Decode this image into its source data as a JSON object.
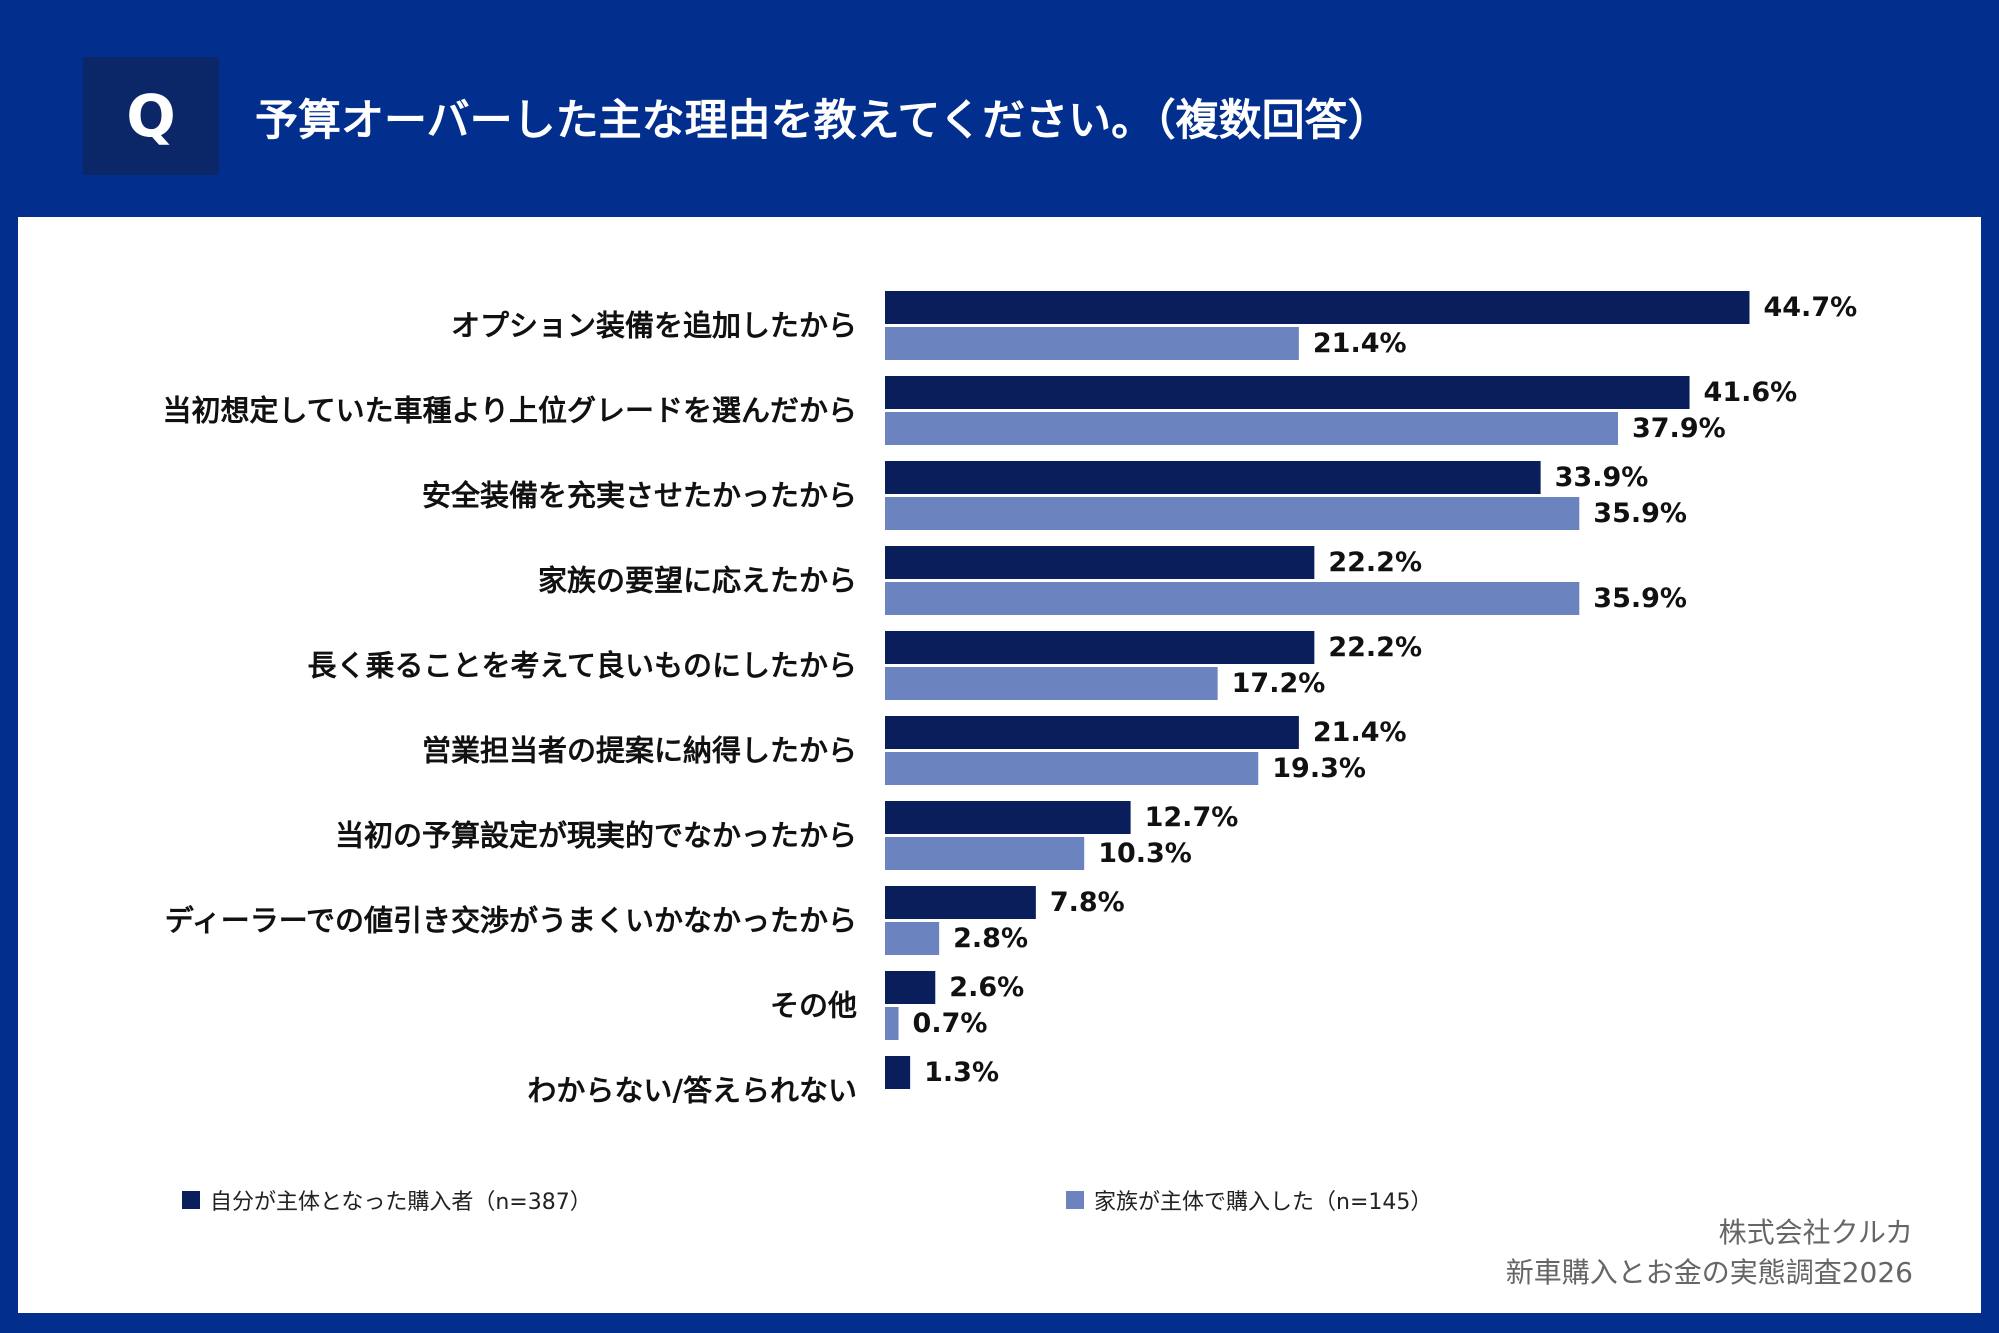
{
  "question_mark": "Q",
  "source": {
    "company": "株式会社クルカ",
    "survey": "新車購入とお金の実態調査2026"
  },
  "chart_data": {
    "type": "bar",
    "title": "予算オーバーした主な理由を教えてください。（複数回答）",
    "categories": [
      "オプション装備を追加したから",
      "当初想定していた車種より上位グレードを選んだから",
      "安全装備を充実させたかったから",
      "家族の要望に応えたから",
      "長く乗ることを考えて良いものにしたから",
      "営業担当者の提案に納得したから",
      "当初の予算設定が現実的でなかったから",
      "ディーラーでの値引き交渉がうまくいかなかったから",
      "その他",
      "わからない/答えられない"
    ],
    "series": [
      {
        "name": "自分が主体となった購入者（n=387）",
        "color": "#0A1E5C",
        "values": [
          44.7,
          41.6,
          33.9,
          22.2,
          22.2,
          21.4,
          12.7,
          7.8,
          2.6,
          1.3
        ],
        "data_labels": [
          "44.7%",
          "41.6%",
          "33.9%",
          "22.2%",
          "22.2%",
          "21.4%",
          "12.7%",
          "7.8%",
          "2.6%",
          "1.3%"
        ]
      },
      {
        "name": "家族が主体で購入した（n=145）",
        "color": "#6B84C0",
        "values": [
          21.4,
          37.9,
          35.9,
          35.9,
          17.2,
          19.3,
          10.3,
          2.8,
          0.7,
          null
        ],
        "data_labels": [
          "21.4%",
          "37.9%",
          "35.9%",
          "35.9%",
          "17.2%",
          "19.3%",
          "10.3%",
          "2.8%",
          "0.7%",
          null
        ]
      }
    ],
    "xlim": [
      0,
      50
    ],
    "grid": false
  }
}
